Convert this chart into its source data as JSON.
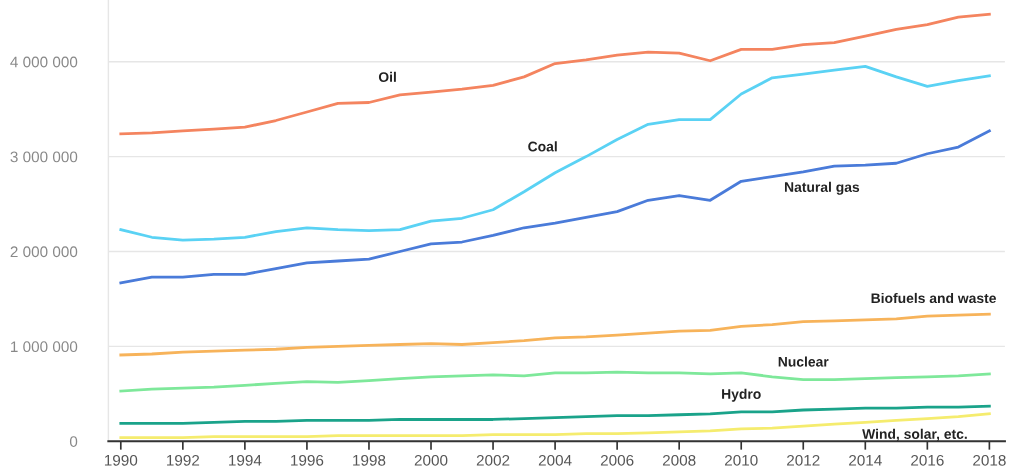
{
  "chart_data": {
    "type": "line",
    "x": [
      1990,
      1991,
      1992,
      1993,
      1994,
      1995,
      1996,
      1997,
      1998,
      1999,
      2000,
      2001,
      2002,
      2003,
      2004,
      2005,
      2006,
      2007,
      2008,
      2009,
      2010,
      2011,
      2012,
      2013,
      2014,
      2015,
      2016,
      2017,
      2018
    ],
    "series": [
      {
        "name": "Oil",
        "color": "#f4845f",
        "values": [
          3240000,
          3250000,
          3270000,
          3290000,
          3310000,
          3380000,
          3470000,
          3560000,
          3570000,
          3650000,
          3680000,
          3710000,
          3750000,
          3840000,
          3980000,
          4020000,
          4070000,
          4100000,
          4090000,
          4010000,
          4130000,
          4130000,
          4180000,
          4200000,
          4270000,
          4340000,
          4390000,
          4470000,
          4500000
        ]
      },
      {
        "name": "Coal",
        "color": "#5ad2f4",
        "values": [
          2230000,
          2150000,
          2120000,
          2130000,
          2150000,
          2210000,
          2250000,
          2230000,
          2220000,
          2230000,
          2320000,
          2350000,
          2440000,
          2630000,
          2830000,
          3000000,
          3180000,
          3340000,
          3390000,
          3390000,
          3660000,
          3830000,
          3870000,
          3910000,
          3950000,
          3840000,
          3740000,
          3800000,
          3850000
        ]
      },
      {
        "name": "Natural gas",
        "color": "#4a7bd9",
        "values": [
          1670000,
          1730000,
          1730000,
          1760000,
          1760000,
          1820000,
          1880000,
          1900000,
          1920000,
          2000000,
          2080000,
          2100000,
          2170000,
          2250000,
          2300000,
          2360000,
          2420000,
          2540000,
          2590000,
          2540000,
          2740000,
          2790000,
          2840000,
          2900000,
          2910000,
          2930000,
          3030000,
          3100000,
          3270000
        ]
      },
      {
        "name": "Biofuels and waste",
        "color": "#f7b35a",
        "values": [
          910000,
          920000,
          940000,
          950000,
          960000,
          970000,
          990000,
          1000000,
          1010000,
          1020000,
          1030000,
          1020000,
          1040000,
          1060000,
          1090000,
          1100000,
          1120000,
          1140000,
          1160000,
          1170000,
          1210000,
          1230000,
          1260000,
          1270000,
          1280000,
          1290000,
          1320000,
          1330000,
          1340000
        ]
      },
      {
        "name": "Nuclear",
        "color": "#7ee89a",
        "values": [
          530000,
          550000,
          560000,
          570000,
          590000,
          610000,
          630000,
          620000,
          640000,
          660000,
          680000,
          690000,
          700000,
          690000,
          720000,
          720000,
          730000,
          720000,
          720000,
          710000,
          720000,
          680000,
          650000,
          650000,
          660000,
          670000,
          680000,
          690000,
          710000
        ]
      },
      {
        "name": "Hydro",
        "color": "#1aa38a",
        "values": [
          190000,
          190000,
          190000,
          200000,
          210000,
          210000,
          220000,
          220000,
          220000,
          230000,
          230000,
          230000,
          230000,
          240000,
          250000,
          260000,
          270000,
          270000,
          280000,
          290000,
          310000,
          310000,
          330000,
          340000,
          350000,
          350000,
          360000,
          360000,
          370000
        ]
      },
      {
        "name": "Wind, solar, etc.",
        "color": "#f5ec6e",
        "values": [
          40000,
          40000,
          40000,
          50000,
          50000,
          50000,
          50000,
          60000,
          60000,
          60000,
          60000,
          60000,
          70000,
          70000,
          70000,
          80000,
          80000,
          90000,
          100000,
          110000,
          130000,
          140000,
          160000,
          180000,
          200000,
          220000,
          240000,
          260000,
          290000
        ]
      }
    ],
    "xlim": [
      1989.6,
      2018.5
    ],
    "xticks": [
      1990,
      1992,
      1994,
      1996,
      1998,
      2000,
      2002,
      2004,
      2006,
      2008,
      2010,
      2012,
      2014,
      2016,
      2018
    ],
    "ylim": [
      0,
      4650000
    ],
    "yticks": [
      {
        "value": 0,
        "label": "0"
      },
      {
        "value": 1000000,
        "label": "1 000 000"
      },
      {
        "value": 2000000,
        "label": "2 000 000"
      },
      {
        "value": 3000000,
        "label": "3 000 000"
      },
      {
        "value": 4000000,
        "label": "4 000 000"
      }
    ],
    "grid": "y",
    "legend": false,
    "marker": "none",
    "line_style": "solid"
  }
}
